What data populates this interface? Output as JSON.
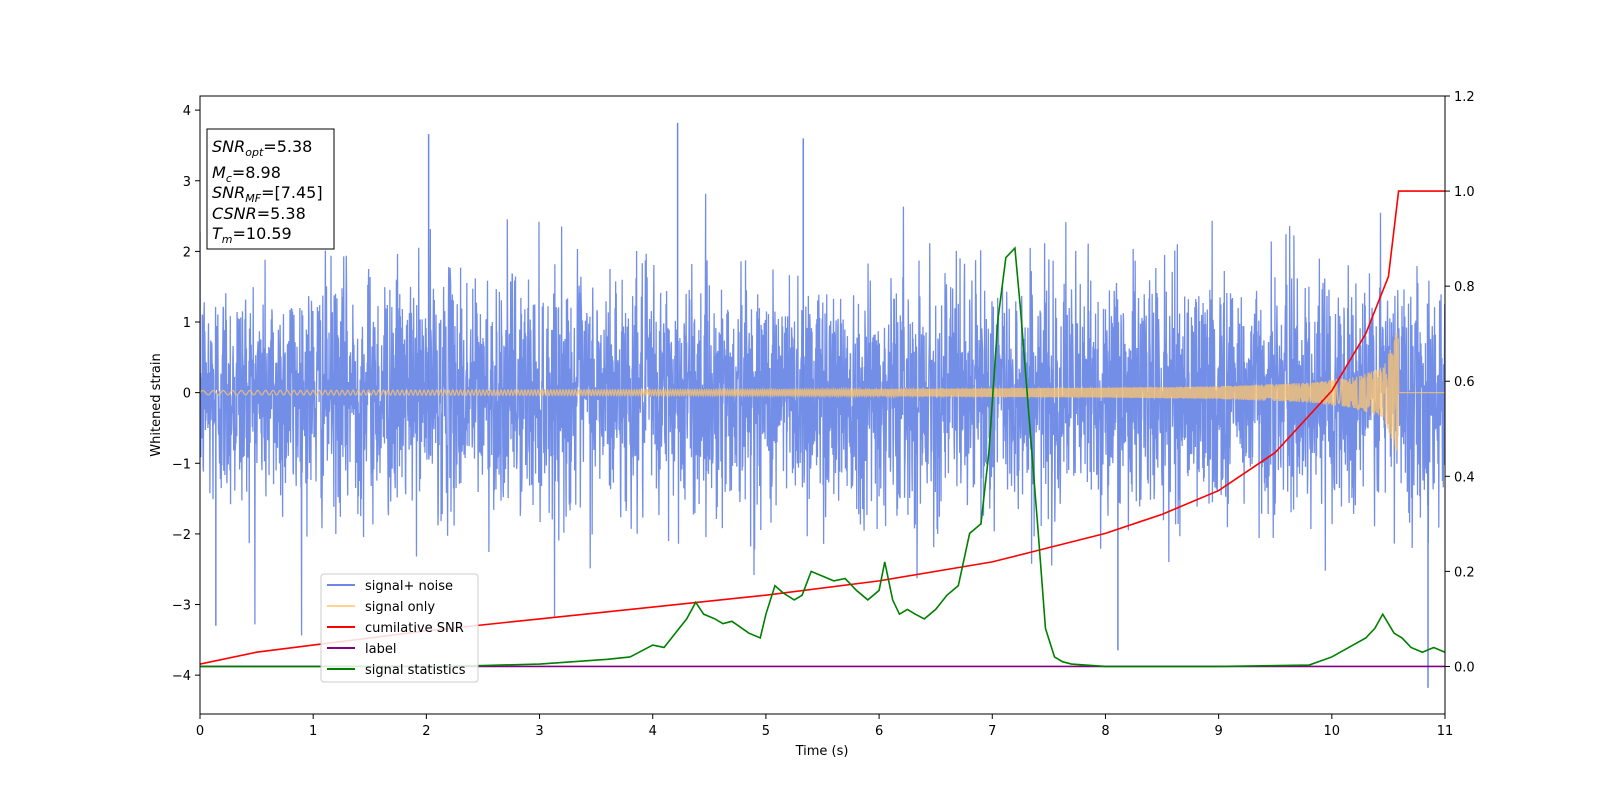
{
  "chart_data": {
    "type": "line",
    "xlabel": "Time (s)",
    "ylabel": "Whitened strain",
    "xlim": [
      0,
      11
    ],
    "ylim": [
      -4.55,
      4.2
    ],
    "y2lim": [
      -0.1,
      1.2
    ],
    "x_ticks": [
      "0",
      "1",
      "2",
      "3",
      "4",
      "5",
      "6",
      "7",
      "8",
      "9",
      "10",
      "11"
    ],
    "y_ticks": [
      "4",
      "3",
      "2",
      "1",
      "0",
      "−1",
      "−2",
      "−3",
      "−4"
    ],
    "y2_ticks": [
      "1.2",
      "1.0",
      "0.8",
      "0.6",
      "0.4",
      "0.2",
      "0.0"
    ],
    "grid": false,
    "legend_position": "lower-left",
    "info_box": [
      {
        "sym": "SNR",
        "sub": "opt",
        "rest": "=5.38"
      },
      {
        "sym": "M",
        "sub": "c",
        "rest": "=8.98"
      },
      {
        "sym": "SNR",
        "sub": "MF",
        "rest": "=[7.45]"
      },
      {
        "sym": "CSNR",
        "sub": "",
        "rest": "=5.38"
      },
      {
        "sym": "T",
        "sub": "m",
        "rest": "=10.59"
      }
    ],
    "series": [
      {
        "name": "signal+ noise",
        "color": "#6b88e6",
        "axis": "left",
        "noise_sigma": 1.0,
        "peaks": [
          {
            "x": 4.22,
            "y": 3.82
          },
          {
            "x": 2.02,
            "y": 3.66
          },
          {
            "x": 5.33,
            "y": 3.6
          },
          {
            "x": 10.85,
            "y": -4.18
          },
          {
            "x": 0.14,
            "y": -3.3
          },
          {
            "x": 8.11,
            "y": -3.65
          }
        ]
      },
      {
        "name": "signal only",
        "color": "#ffc56b",
        "axis": "left",
        "envelope": {
          "t_merge": 10.59,
          "x": [
            0,
            3,
            6,
            8,
            9,
            9.8,
            10.2,
            10.45,
            10.58
          ],
          "amp": [
            0.03,
            0.04,
            0.05,
            0.07,
            0.09,
            0.14,
            0.22,
            0.35,
            0.88
          ]
        }
      },
      {
        "name": "cumilative SNR",
        "color": "#ff0000",
        "axis": "right",
        "x": [
          0,
          0.5,
          1,
          2,
          3,
          4,
          5,
          6,
          7,
          7.5,
          8,
          8.5,
          9,
          9.5,
          10,
          10.3,
          10.5,
          10.59,
          11
        ],
        "values": [
          0.005,
          0.03,
          0.045,
          0.075,
          0.1,
          0.125,
          0.15,
          0.18,
          0.22,
          0.25,
          0.28,
          0.32,
          0.37,
          0.45,
          0.58,
          0.7,
          0.82,
          1.0,
          1.0
        ]
      },
      {
        "name": "label",
        "color": "#800080",
        "axis": "right",
        "x": [
          0,
          11
        ],
        "values": [
          0.0,
          0.0
        ]
      },
      {
        "name": "signal statistics",
        "color": "#008000",
        "axis": "right",
        "x": [
          0,
          2,
          2.5,
          3,
          3.3,
          3.6,
          3.8,
          4.0,
          4.1,
          4.2,
          4.3,
          4.38,
          4.45,
          4.55,
          4.62,
          4.7,
          4.85,
          4.95,
          5.0,
          5.08,
          5.15,
          5.25,
          5.32,
          5.4,
          5.5,
          5.6,
          5.7,
          5.8,
          5.9,
          6.0,
          6.05,
          6.12,
          6.18,
          6.25,
          6.32,
          6.4,
          6.5,
          6.6,
          6.7,
          6.8,
          6.9,
          6.97,
          7.05,
          7.12,
          7.2,
          7.25,
          7.3,
          7.4,
          7.47,
          7.55,
          7.62,
          7.7,
          8.0,
          9.0,
          9.8,
          10.0,
          10.15,
          10.3,
          10.38,
          10.45,
          10.55,
          10.62,
          10.7,
          10.8,
          10.9,
          11.0
        ],
        "values": [
          0.0,
          0.0,
          0.002,
          0.005,
          0.01,
          0.015,
          0.02,
          0.045,
          0.04,
          0.07,
          0.1,
          0.135,
          0.11,
          0.1,
          0.09,
          0.095,
          0.07,
          0.06,
          0.11,
          0.17,
          0.155,
          0.14,
          0.15,
          0.2,
          0.19,
          0.18,
          0.185,
          0.16,
          0.14,
          0.16,
          0.22,
          0.14,
          0.11,
          0.12,
          0.11,
          0.1,
          0.12,
          0.15,
          0.17,
          0.28,
          0.3,
          0.45,
          0.73,
          0.86,
          0.88,
          0.75,
          0.6,
          0.3,
          0.08,
          0.02,
          0.01,
          0.005,
          0.0,
          0.0,
          0.003,
          0.02,
          0.04,
          0.06,
          0.08,
          0.11,
          0.07,
          0.06,
          0.04,
          0.03,
          0.04,
          0.03
        ]
      }
    ]
  }
}
